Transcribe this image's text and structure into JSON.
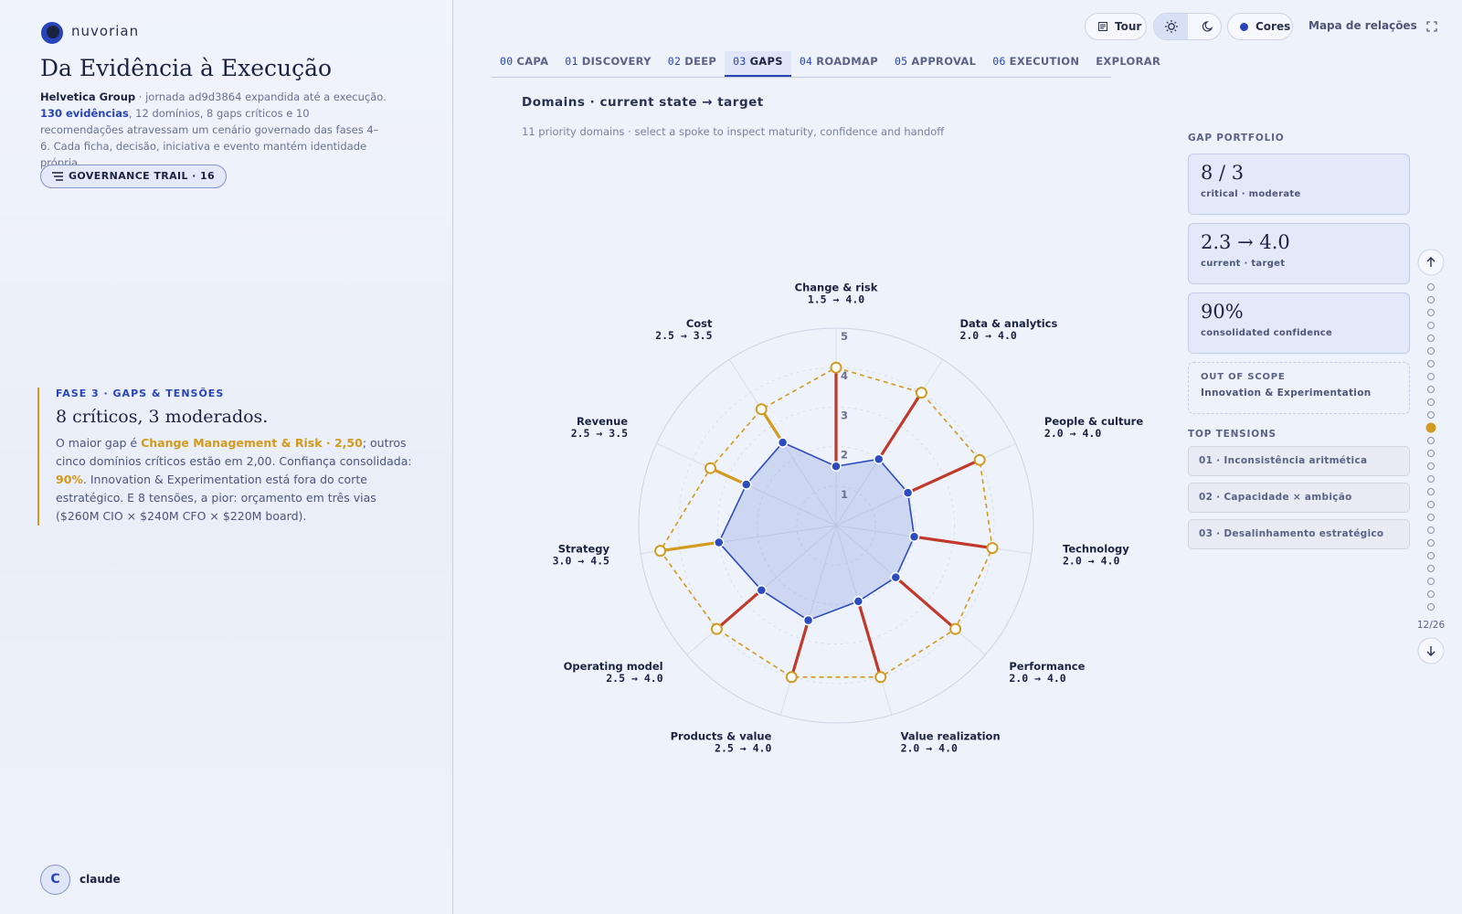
{
  "sidebar": {
    "brand": "nuvorian",
    "title": "Da Evidência à Execução",
    "intro": {
      "org": "Helvetica Group",
      "journey": " · jornada ad9d3864 expandida até a execução.",
      "evidence": "130 evidências",
      "rest": ", 12 domínios, 8 gaps críticos e 10 recomendações atravessam um cenário governado das fases 4–6. Cada ficha, decisão, iniciativa e evento mantém identidade própria."
    },
    "trail_button": "GOVERNANCE TRAIL · 16",
    "phase": {
      "kicker": "FASE 3 · GAPS & TENSÕES",
      "heading": "8 críticos, 3 moderados.",
      "body": [
        "O maior gap é ",
        "Change Management & Risk · 2,50",
        "; outros cinco domínios críticos estão em 2,00. Confiança consolidada: ",
        "90%",
        ". Innovation & Experimentation está fora do corte estratégico. E 8 tensões, a pior: orçamento em três vias ($260M CIO × $240M CFO × $220M board)."
      ]
    },
    "user": {
      "initial": "C",
      "name": "claude"
    }
  },
  "toolbar": {
    "tour": "Tour",
    "colors": "Cores",
    "map": "Mapa de relações"
  },
  "tabs": [
    {
      "num": "00",
      "label": "CAPA"
    },
    {
      "num": "01",
      "label": "DISCOVERY"
    },
    {
      "num": "02",
      "label": "DEEP"
    },
    {
      "num": "03",
      "label": "GAPS",
      "active": true
    },
    {
      "num": "04",
      "label": "ROADMAP"
    },
    {
      "num": "05",
      "label": "APPROVAL"
    },
    {
      "num": "06",
      "label": "EXECUTION"
    },
    {
      "label": "EXPLORAR"
    }
  ],
  "chart_data": {
    "type": "radar",
    "title": "Domains · current state → target",
    "subtitle": "11 priority domains · select a spoke to inspect maturity, confidence and handoff",
    "categories": [
      "Change & risk",
      "Data & analytics",
      "People & culture",
      "Technology",
      "Performance",
      "Value realization",
      "Products & value",
      "Operating model",
      "Strategy",
      "Revenue",
      "Cost"
    ],
    "rlim": [
      0,
      5
    ],
    "rticks": [
      1,
      2,
      3,
      4,
      5
    ],
    "separator": "→",
    "series": [
      {
        "color": "#2b4bbf",
        "values": [
          1.5,
          2.0,
          2.0,
          2.0,
          2.0,
          2.0,
          2.5,
          2.5,
          3.0,
          2.5,
          2.5
        ],
        "value_labels": [
          "1.5",
          "2.0",
          "2.0",
          "2.0",
          "2.0",
          "2.0",
          "2.5",
          "2.5",
          "3.0",
          "2.5",
          "2.5"
        ]
      },
      {
        "color": "#d29a1e",
        "values": [
          4.0,
          4.0,
          4.0,
          4.0,
          4.0,
          4.0,
          4.0,
          4.0,
          4.5,
          3.5,
          3.5
        ],
        "value_labels": [
          "4.0",
          "4.0",
          "4.0",
          "4.0",
          "4.0",
          "4.0",
          "4.0",
          "4.0",
          "4.5",
          "3.5",
          "3.5"
        ]
      }
    ],
    "gap_colors": [
      "#c0392b",
      "#c0392b",
      "#c0392b",
      "#c0392b",
      "#c0392b",
      "#c0392b",
      "#c0392b",
      "#c0392b",
      "#d29a1e",
      "#d29a1e",
      "#d29a1e"
    ]
  },
  "portfolio": {
    "heading": "GAP PORTFOLIO",
    "cards": [
      {
        "value": "8 / 3",
        "caption": "critical · moderate"
      },
      {
        "value": "2.3 → 4.0",
        "caption": "current · target"
      },
      {
        "value": "90%",
        "caption": "consolidated confidence"
      }
    ],
    "out_of_scope": {
      "heading": "OUT OF SCOPE",
      "text": "Innovation & Experimentation"
    },
    "tensions_heading": "TOP TENSIONS",
    "tensions": [
      "01 · Inconsistência aritmética",
      "02 · Capacidade × ambição",
      "03 · Desalinhamento estratégico"
    ]
  },
  "pager": {
    "current": 12,
    "total": 26,
    "label": "12/26"
  }
}
